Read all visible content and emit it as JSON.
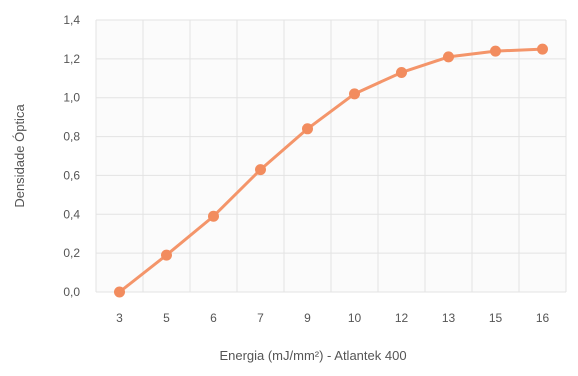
{
  "chart_data": {
    "type": "line",
    "categories": [
      "3",
      "5",
      "6",
      "7",
      "9",
      "10",
      "12",
      "13",
      "15",
      "16"
    ],
    "series": [
      {
        "values": [
          0.0,
          0.19,
          0.39,
          0.63,
          0.84,
          1.02,
          1.13,
          1.21,
          1.24,
          1.25
        ]
      }
    ],
    "title": "",
    "xlabel": "Energia (mJ/mm²) - Atlantek 400",
    "ylabel": "Densidade Óptica",
    "ylim": [
      0,
      1.4
    ],
    "yticks": [
      "0,0",
      "0,2",
      "0,4",
      "0,6",
      "0,8",
      "1,0",
      "1,2",
      "1,4"
    ],
    "grid": true,
    "legend": "none",
    "colors": {
      "line": "#f4956a",
      "marker": "#f28c5e",
      "grid": "#e3e3e3",
      "plot_background": "#fbfbfb",
      "text": "#555555"
    }
  }
}
